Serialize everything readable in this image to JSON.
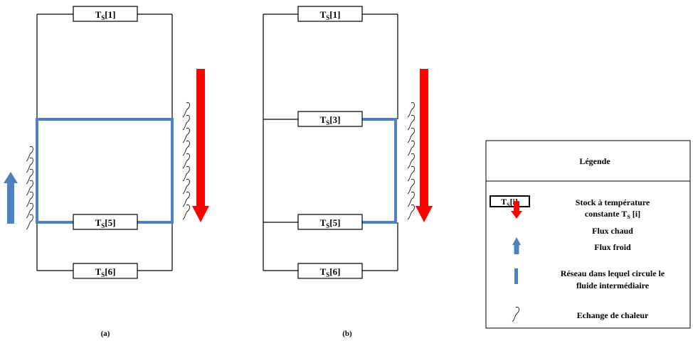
{
  "stocks": {
    "s1": {
      "main": "T",
      "sub": "S",
      "tail": "[1]"
    },
    "s3": {
      "main": "T",
      "sub": "S",
      "tail": "[3]"
    },
    "s5": {
      "main": "T",
      "sub": "S",
      "tail": "[5]"
    },
    "s6": {
      "main": "T",
      "sub": "S",
      "tail": "[6]"
    }
  },
  "captions": {
    "a": "(a)",
    "b": "(b)"
  },
  "legend": {
    "title": "Légende",
    "symbol_stock": {
      "main": "T",
      "sub": "S",
      "tail": "[i]"
    },
    "stock_line1": "Stock à température",
    "stock_line2_pre": "constante T",
    "stock_line2_sub": "S",
    "stock_line2_post": " [i]",
    "hot": "Flux chaud",
    "cold": "Flux froid",
    "network_line1": "Réseau dans lequel circule le",
    "network_line2": "fluide intermédiaire",
    "exchange": "Echange de chaleur"
  },
  "colors": {
    "hot": "#ff0000",
    "cold": "#4f81bd",
    "network": "#4f81bd",
    "line": "#000000"
  }
}
